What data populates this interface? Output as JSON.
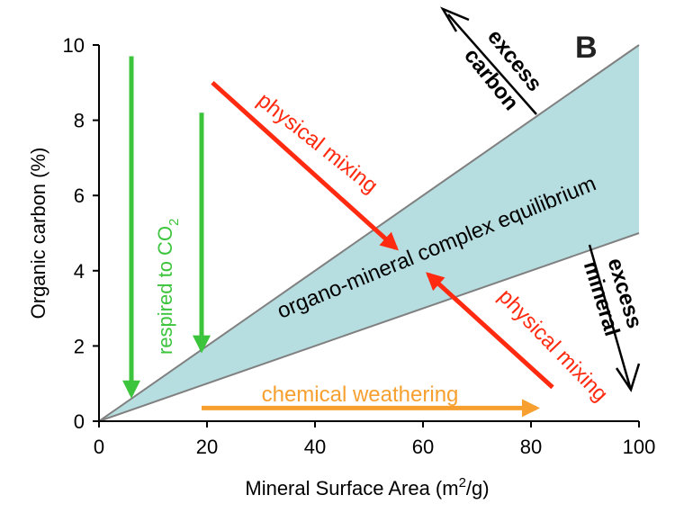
{
  "chart_data": {
    "type": "area",
    "panel_label": "B",
    "xlabel": "Mineral Surface Area (m",
    "xlabel_sup": "2",
    "xlabel_end": "/g)",
    "ylabel": "Organic carbon (%)",
    "xlim": [
      0,
      100
    ],
    "ylim": [
      0,
      10
    ],
    "xticks": [
      0,
      20,
      40,
      60,
      80,
      100
    ],
    "yticks": [
      0,
      2,
      4,
      6,
      8,
      10
    ],
    "grid": false,
    "band": {
      "upper": {
        "x": [
          0,
          100
        ],
        "y": [
          0,
          10
        ]
      },
      "lower": {
        "x": [
          0,
          100
        ],
        "y": [
          0,
          5
        ]
      },
      "fill_color": "#b6dde0",
      "edge_color": "#808080"
    },
    "annotations": {
      "band_label": "organo-mineral complex equilibrium",
      "respired": "respired  to CO",
      "respired_sub": "2",
      "physical_mixing_top": "physical mixing",
      "physical_mixing_bottom": "physical mixing",
      "chemical_weathering": "chemical weathering",
      "excess_carbon_line1": "excess",
      "excess_carbon_line2": "carbon",
      "excess_mineral_line1": "excess",
      "excess_mineral_line2": "mineral"
    },
    "arrows": [
      {
        "name": "respired-arrow-1",
        "from": [
          6,
          9.7
        ],
        "to": [
          6,
          0.7
        ],
        "color": "#3cc43c"
      },
      {
        "name": "respired-arrow-2",
        "from": [
          19,
          8.2
        ],
        "to": [
          19,
          1.9
        ],
        "color": "#3cc43c"
      },
      {
        "name": "physical-mixing-arrow-top",
        "from": [
          21,
          9.0
        ],
        "to": [
          55,
          4.6
        ],
        "color": "#ff2a10"
      },
      {
        "name": "physical-mixing-arrow-bottom",
        "from": [
          84,
          0.9
        ],
        "to": [
          61,
          3.9
        ],
        "color": "#ff2a10"
      },
      {
        "name": "chemical-weathering-arrow",
        "from": [
          19,
          0.35
        ],
        "to": [
          81,
          0.35
        ],
        "color": "#f7a030"
      }
    ],
    "colors": {
      "green": "#3cc43c",
      "red": "#ff2a10",
      "orange": "#f7a030",
      "band": "#b6dde0"
    }
  }
}
